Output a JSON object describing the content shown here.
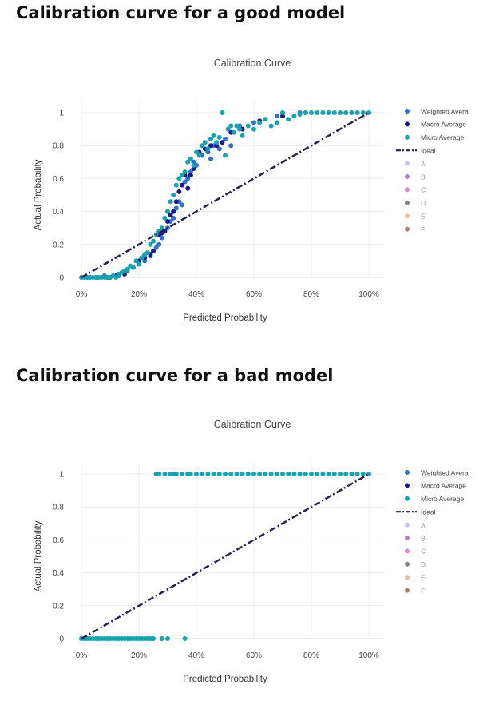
{
  "headings": {
    "good": "Calibration curve for a good model",
    "bad": "Calibration curve for a bad model"
  },
  "colors": {
    "weighted": "#2f6fd0",
    "macro": "#1a1a8c",
    "micro": "#17a2b0",
    "ideal": "#2b2150",
    "A": "#c7c3ef",
    "B": "#a887b8",
    "C": "#e783d2",
    "D": "#7f8a7f",
    "E": "#f2b99b",
    "F": "#a57f73"
  },
  "chart_data": [
    {
      "type": "scatter",
      "title": "Calibration Curve",
      "xlabel": "Predicted Probability",
      "ylabel": "Actual Probability",
      "xlim": [
        0,
        1
      ],
      "ylim": [
        0,
        1
      ],
      "x_ticks": [
        "0%",
        "20%",
        "40%",
        "60%",
        "80%",
        "100%"
      ],
      "x_tick_values": [
        0,
        0.2,
        0.4,
        0.6,
        0.8,
        1
      ],
      "y_ticks": [
        "0",
        "0.2",
        "0.4",
        "0.6",
        "0.8",
        "1"
      ],
      "y_tick_values": [
        0,
        0.2,
        0.4,
        0.6,
        0.8,
        1
      ],
      "grid": true,
      "legend_position": "right",
      "legend": [
        "Weighted Avera",
        "Macro Average",
        "Micro Average",
        "Ideal",
        "A",
        "B",
        "C",
        "D",
        "E",
        "F"
      ],
      "series": [
        {
          "name": "Weighted Avera",
          "color_key": "weighted",
          "x": [
            0.02,
            0.05,
            0.08,
            0.1,
            0.13,
            0.16,
            0.18,
            0.2,
            0.22,
            0.24,
            0.26,
            0.27,
            0.28,
            0.3,
            0.31,
            0.32,
            0.33,
            0.34,
            0.35,
            0.36,
            0.37,
            0.38,
            0.39,
            0.4,
            0.42,
            0.44,
            0.45,
            0.46,
            0.48,
            0.5,
            0.52,
            0.55,
            0.6,
            0.68,
            0.76
          ],
          "y": [
            0,
            0,
            0.01,
            0,
            0.01,
            0.04,
            0.06,
            0.09,
            0.1,
            0.13,
            0.18,
            0.2,
            0.24,
            0.3,
            0.34,
            0.36,
            0.42,
            0.46,
            0.44,
            0.58,
            0.6,
            0.64,
            0.7,
            0.68,
            0.74,
            0.76,
            0.72,
            0.8,
            0.78,
            0.84,
            0.8,
            0.92,
            0.94,
            0.98,
            1
          ]
        },
        {
          "name": "Macro Average",
          "color_key": "macro",
          "x": [
            0.03,
            0.06,
            0.09,
            0.12,
            0.15,
            0.18,
            0.2,
            0.22,
            0.24,
            0.25,
            0.27,
            0.28,
            0.29,
            0.3,
            0.31,
            0.32,
            0.33,
            0.34,
            0.35,
            0.36,
            0.37,
            0.38,
            0.39,
            0.41,
            0.43,
            0.45,
            0.47,
            0.49,
            0.52,
            0.56,
            0.62,
            0.7,
            0.78
          ],
          "y": [
            0,
            0,
            0,
            0.01,
            0.02,
            0.06,
            0.1,
            0.12,
            0.14,
            0.16,
            0.26,
            0.27,
            0.28,
            0.34,
            0.38,
            0.4,
            0.46,
            0.52,
            0.56,
            0.62,
            0.54,
            0.62,
            0.66,
            0.76,
            0.78,
            0.8,
            0.8,
            0.82,
            0.88,
            0.9,
            0.95,
            0.98,
            1
          ]
        },
        {
          "name": "Micro Average",
          "color_key": "micro",
          "x": [
            0,
            0.01,
            0.02,
            0.03,
            0.04,
            0.05,
            0.06,
            0.07,
            0.08,
            0.09,
            0.1,
            0.11,
            0.12,
            0.13,
            0.14,
            0.15,
            0.16,
            0.17,
            0.18,
            0.19,
            0.2,
            0.21,
            0.22,
            0.23,
            0.24,
            0.25,
            0.26,
            0.27,
            0.28,
            0.29,
            0.3,
            0.31,
            0.32,
            0.33,
            0.34,
            0.35,
            0.36,
            0.37,
            0.38,
            0.39,
            0.4,
            0.41,
            0.42,
            0.43,
            0.44,
            0.45,
            0.46,
            0.47,
            0.48,
            0.49,
            0.5,
            0.51,
            0.52,
            0.53,
            0.54,
            0.55,
            0.56,
            0.58,
            0.6,
            0.62,
            0.64,
            0.66,
            0.68,
            0.7,
            0.72,
            0.74,
            0.76,
            0.78,
            0.8,
            0.82,
            0.84,
            0.86,
            0.88,
            0.9,
            0.92,
            0.94,
            0.96,
            0.98,
            1
          ],
          "y": [
            0,
            0,
            0,
            0,
            0,
            0,
            0,
            0,
            0,
            0,
            0,
            0.01,
            0,
            0.02,
            0.03,
            0.04,
            0.05,
            0.07,
            0.06,
            0.1,
            0.08,
            0.12,
            0.14,
            0.15,
            0.2,
            0.22,
            0.26,
            0.28,
            0.3,
            0.36,
            0.4,
            0.46,
            0.5,
            0.56,
            0.6,
            0.62,
            0.64,
            0.7,
            0.72,
            0.68,
            0.76,
            0.74,
            0.8,
            0.82,
            0.78,
            0.84,
            0.86,
            0.82,
            0.85,
            1,
            0.74,
            0.9,
            0.92,
            0.88,
            0.92,
            0.9,
            0.86,
            0.92,
            0.9,
            0.94,
            0.96,
            0.92,
            0.94,
            1,
            0.96,
            0.98,
            0.99,
            1,
            1,
            1,
            1,
            1,
            1,
            1,
            1,
            1,
            1,
            1,
            1
          ]
        },
        {
          "name": "Ideal",
          "color_key": "ideal",
          "line": true,
          "x": [
            0,
            1
          ],
          "y": [
            0,
            1
          ]
        }
      ]
    },
    {
      "type": "scatter",
      "title": "Calibration Curve",
      "xlabel": "Predicted Probability",
      "ylabel": "Actual Probability",
      "xlim": [
        0,
        1
      ],
      "ylim": [
        0,
        1
      ],
      "x_ticks": [
        "0%",
        "20%",
        "40%",
        "60%",
        "80%",
        "100%"
      ],
      "x_tick_values": [
        0,
        0.2,
        0.4,
        0.6,
        0.8,
        1
      ],
      "y_ticks": [
        "0",
        "0.2",
        "0.4",
        "0.6",
        "0.8",
        "1"
      ],
      "y_tick_values": [
        0,
        0.2,
        0.4,
        0.6,
        0.8,
        1
      ],
      "grid": true,
      "legend_position": "right",
      "legend": [
        "Weighted Avera",
        "Macro Average",
        "Micro Average",
        "Ideal",
        "A",
        "B",
        "C",
        "D",
        "E",
        "F"
      ],
      "series": [
        {
          "name": "Micro Average",
          "color_key": "micro",
          "x": [
            0,
            0.01,
            0.02,
            0.03,
            0.04,
            0.05,
            0.06,
            0.07,
            0.08,
            0.09,
            0.1,
            0.11,
            0.12,
            0.13,
            0.14,
            0.15,
            0.16,
            0.17,
            0.18,
            0.19,
            0.2,
            0.21,
            0.22,
            0.23,
            0.24,
            0.25,
            0.28,
            0.3,
            0.36,
            0.26,
            0.27,
            0.29,
            0.31,
            0.32,
            0.33,
            0.35,
            0.37,
            0.38,
            0.4,
            0.42,
            0.44,
            0.46,
            0.48,
            0.5,
            0.52,
            0.54,
            0.56,
            0.58,
            0.6,
            0.62,
            0.64,
            0.66,
            0.68,
            0.7,
            0.72,
            0.74,
            0.76,
            0.78,
            0.8,
            0.82,
            0.84,
            0.86,
            0.88,
            0.9,
            0.92,
            0.94,
            0.96,
            0.98,
            1
          ],
          "y": [
            0,
            0,
            0,
            0,
            0,
            0,
            0,
            0,
            0,
            0,
            0,
            0,
            0,
            0,
            0,
            0,
            0,
            0,
            0,
            0,
            0,
            0,
            0,
            0,
            0,
            0,
            0,
            0,
            0,
            1,
            1,
            1,
            1,
            1,
            1,
            1,
            1,
            1,
            1,
            1,
            1,
            1,
            1,
            1,
            1,
            1,
            1,
            1,
            1,
            1,
            1,
            1,
            1,
            1,
            1,
            1,
            1,
            1,
            1,
            1,
            1,
            1,
            1,
            1,
            1,
            1,
            1,
            1,
            1
          ]
        },
        {
          "name": "Ideal",
          "color_key": "ideal",
          "line": true,
          "x": [
            0,
            1
          ],
          "y": [
            0,
            1
          ]
        }
      ]
    }
  ]
}
